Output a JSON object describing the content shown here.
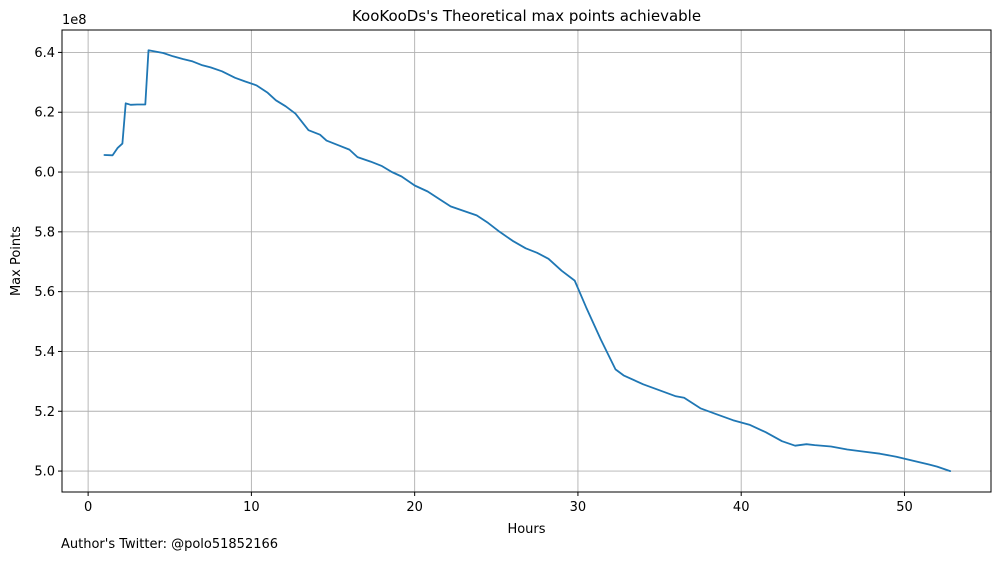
{
  "chart_data": {
    "type": "line",
    "title": "KooKooDs's Theoretical max points achievable",
    "xlabel": "Hours",
    "ylabel": "Max Points",
    "y_multiplier": "1e8",
    "xlim": [
      -1.6,
      55.3
    ],
    "ylim": [
      4.93,
      6.475
    ],
    "x_ticks": [
      0,
      10,
      20,
      30,
      40,
      50
    ],
    "x_tick_labels": [
      "0",
      "10",
      "20",
      "30",
      "40",
      "50"
    ],
    "y_ticks": [
      5.0,
      5.2,
      5.4,
      5.6,
      5.8,
      6.0,
      6.2,
      6.4
    ],
    "y_tick_labels": [
      "5.0",
      "5.2",
      "5.4",
      "5.6",
      "5.8",
      "6.0",
      "6.2",
      "6.4"
    ],
    "grid": true,
    "series": [
      {
        "color": "#1f77b4",
        "x": [
          1.0,
          1.5,
          1.8,
          2.1,
          2.3,
          2.6,
          3.0,
          3.5,
          3.7,
          4.1,
          4.6,
          5.2,
          5.8,
          6.4,
          7.0,
          7.5,
          8.2,
          9.0,
          9.6,
          10.3,
          11.0,
          11.5,
          12.1,
          12.7,
          13.5,
          14.2,
          14.6,
          15.3,
          16.0,
          16.5,
          17.3,
          18.0,
          18.6,
          19.2,
          20.0,
          20.8,
          21.5,
          22.2,
          23.0,
          23.8,
          24.5,
          25.2,
          26.0,
          26.8,
          27.5,
          28.2,
          29.0,
          29.8,
          30.5,
          31.4,
          32.3,
          32.8,
          34.0,
          35.0,
          36.0,
          36.5,
          37.5,
          38.5,
          39.5,
          40.5,
          41.5,
          42.5,
          43.3,
          44.0,
          44.5,
          45.5,
          46.5,
          47.5,
          48.5,
          49.5,
          50.5,
          51.5,
          52.0,
          52.8
        ],
        "y": [
          6.057,
          6.056,
          6.08,
          6.095,
          6.23,
          6.225,
          6.226,
          6.226,
          6.407,
          6.403,
          6.398,
          6.387,
          6.378,
          6.37,
          6.357,
          6.35,
          6.337,
          6.315,
          6.303,
          6.29,
          6.265,
          6.24,
          6.22,
          6.195,
          6.14,
          6.125,
          6.105,
          6.09,
          6.075,
          6.05,
          6.035,
          6.02,
          6.0,
          5.985,
          5.955,
          5.935,
          5.91,
          5.885,
          5.87,
          5.855,
          5.83,
          5.8,
          5.77,
          5.745,
          5.73,
          5.71,
          5.67,
          5.637,
          5.548,
          5.44,
          5.34,
          5.32,
          5.29,
          5.27,
          5.25,
          5.245,
          5.21,
          5.19,
          5.17,
          5.155,
          5.13,
          5.1,
          5.085,
          5.09,
          5.087,
          5.082,
          5.072,
          5.065,
          5.058,
          5.048,
          5.035,
          5.022,
          5.015,
          5.0
        ]
      }
    ]
  },
  "footer_text": "Author's Twitter: @polo51852166"
}
